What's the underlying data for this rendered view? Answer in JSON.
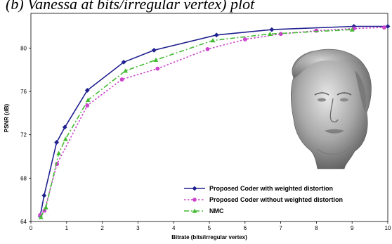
{
  "caption": "(b) Vanessa at bits/irregular vertex) plot",
  "chart_data": {
    "type": "line",
    "xlabel": "Bitrate (bits/irregular vertex)",
    "ylabel": "PSNR (dB)",
    "xlim": [
      0,
      10
    ],
    "ylim": [
      64,
      83.2
    ],
    "xticks": [
      0,
      1,
      2,
      3,
      4,
      5,
      6,
      7,
      8,
      9,
      10
    ],
    "yticks": [
      64,
      68,
      72,
      76,
      80
    ],
    "grid": false,
    "legend_position": "bottom-center",
    "series": [
      {
        "name": "Proposed Coder with weighted distortion",
        "color": "#1f1f8f",
        "marker": "diamond",
        "dash": "solid",
        "x": [
          0.26,
          0.37,
          0.72,
          0.95,
          1.58,
          2.6,
          3.45,
          5.2,
          6.75,
          9.05,
          10.0
        ],
        "y": [
          64.5,
          66.4,
          71.3,
          72.7,
          76.1,
          78.7,
          79.8,
          81.2,
          81.7,
          82.0,
          82.0
        ]
      },
      {
        "name": "Proposed Coder without weighted distortion",
        "color": "#cc44cc",
        "marker": "circle",
        "dash": "dotted",
        "x": [
          0.26,
          0.38,
          0.73,
          1.58,
          2.55,
          3.55,
          4.95,
          6.0,
          7.0,
          8.0,
          9.05,
          9.9
        ],
        "y": [
          64.6,
          65.0,
          69.3,
          74.7,
          77.1,
          78.1,
          79.9,
          80.8,
          81.3,
          81.6,
          81.8,
          81.9
        ]
      },
      {
        "name": "NMC",
        "color": "#44bb33",
        "marker": "triangle",
        "dash": "dashdot",
        "x": [
          0.28,
          0.42,
          0.78,
          0.97,
          1.6,
          2.65,
          3.5,
          5.1,
          6.7,
          9.0
        ],
        "y": [
          64.4,
          65.3,
          70.3,
          71.6,
          75.2,
          77.9,
          78.9,
          80.7,
          81.3,
          81.7
        ]
      }
    ]
  }
}
